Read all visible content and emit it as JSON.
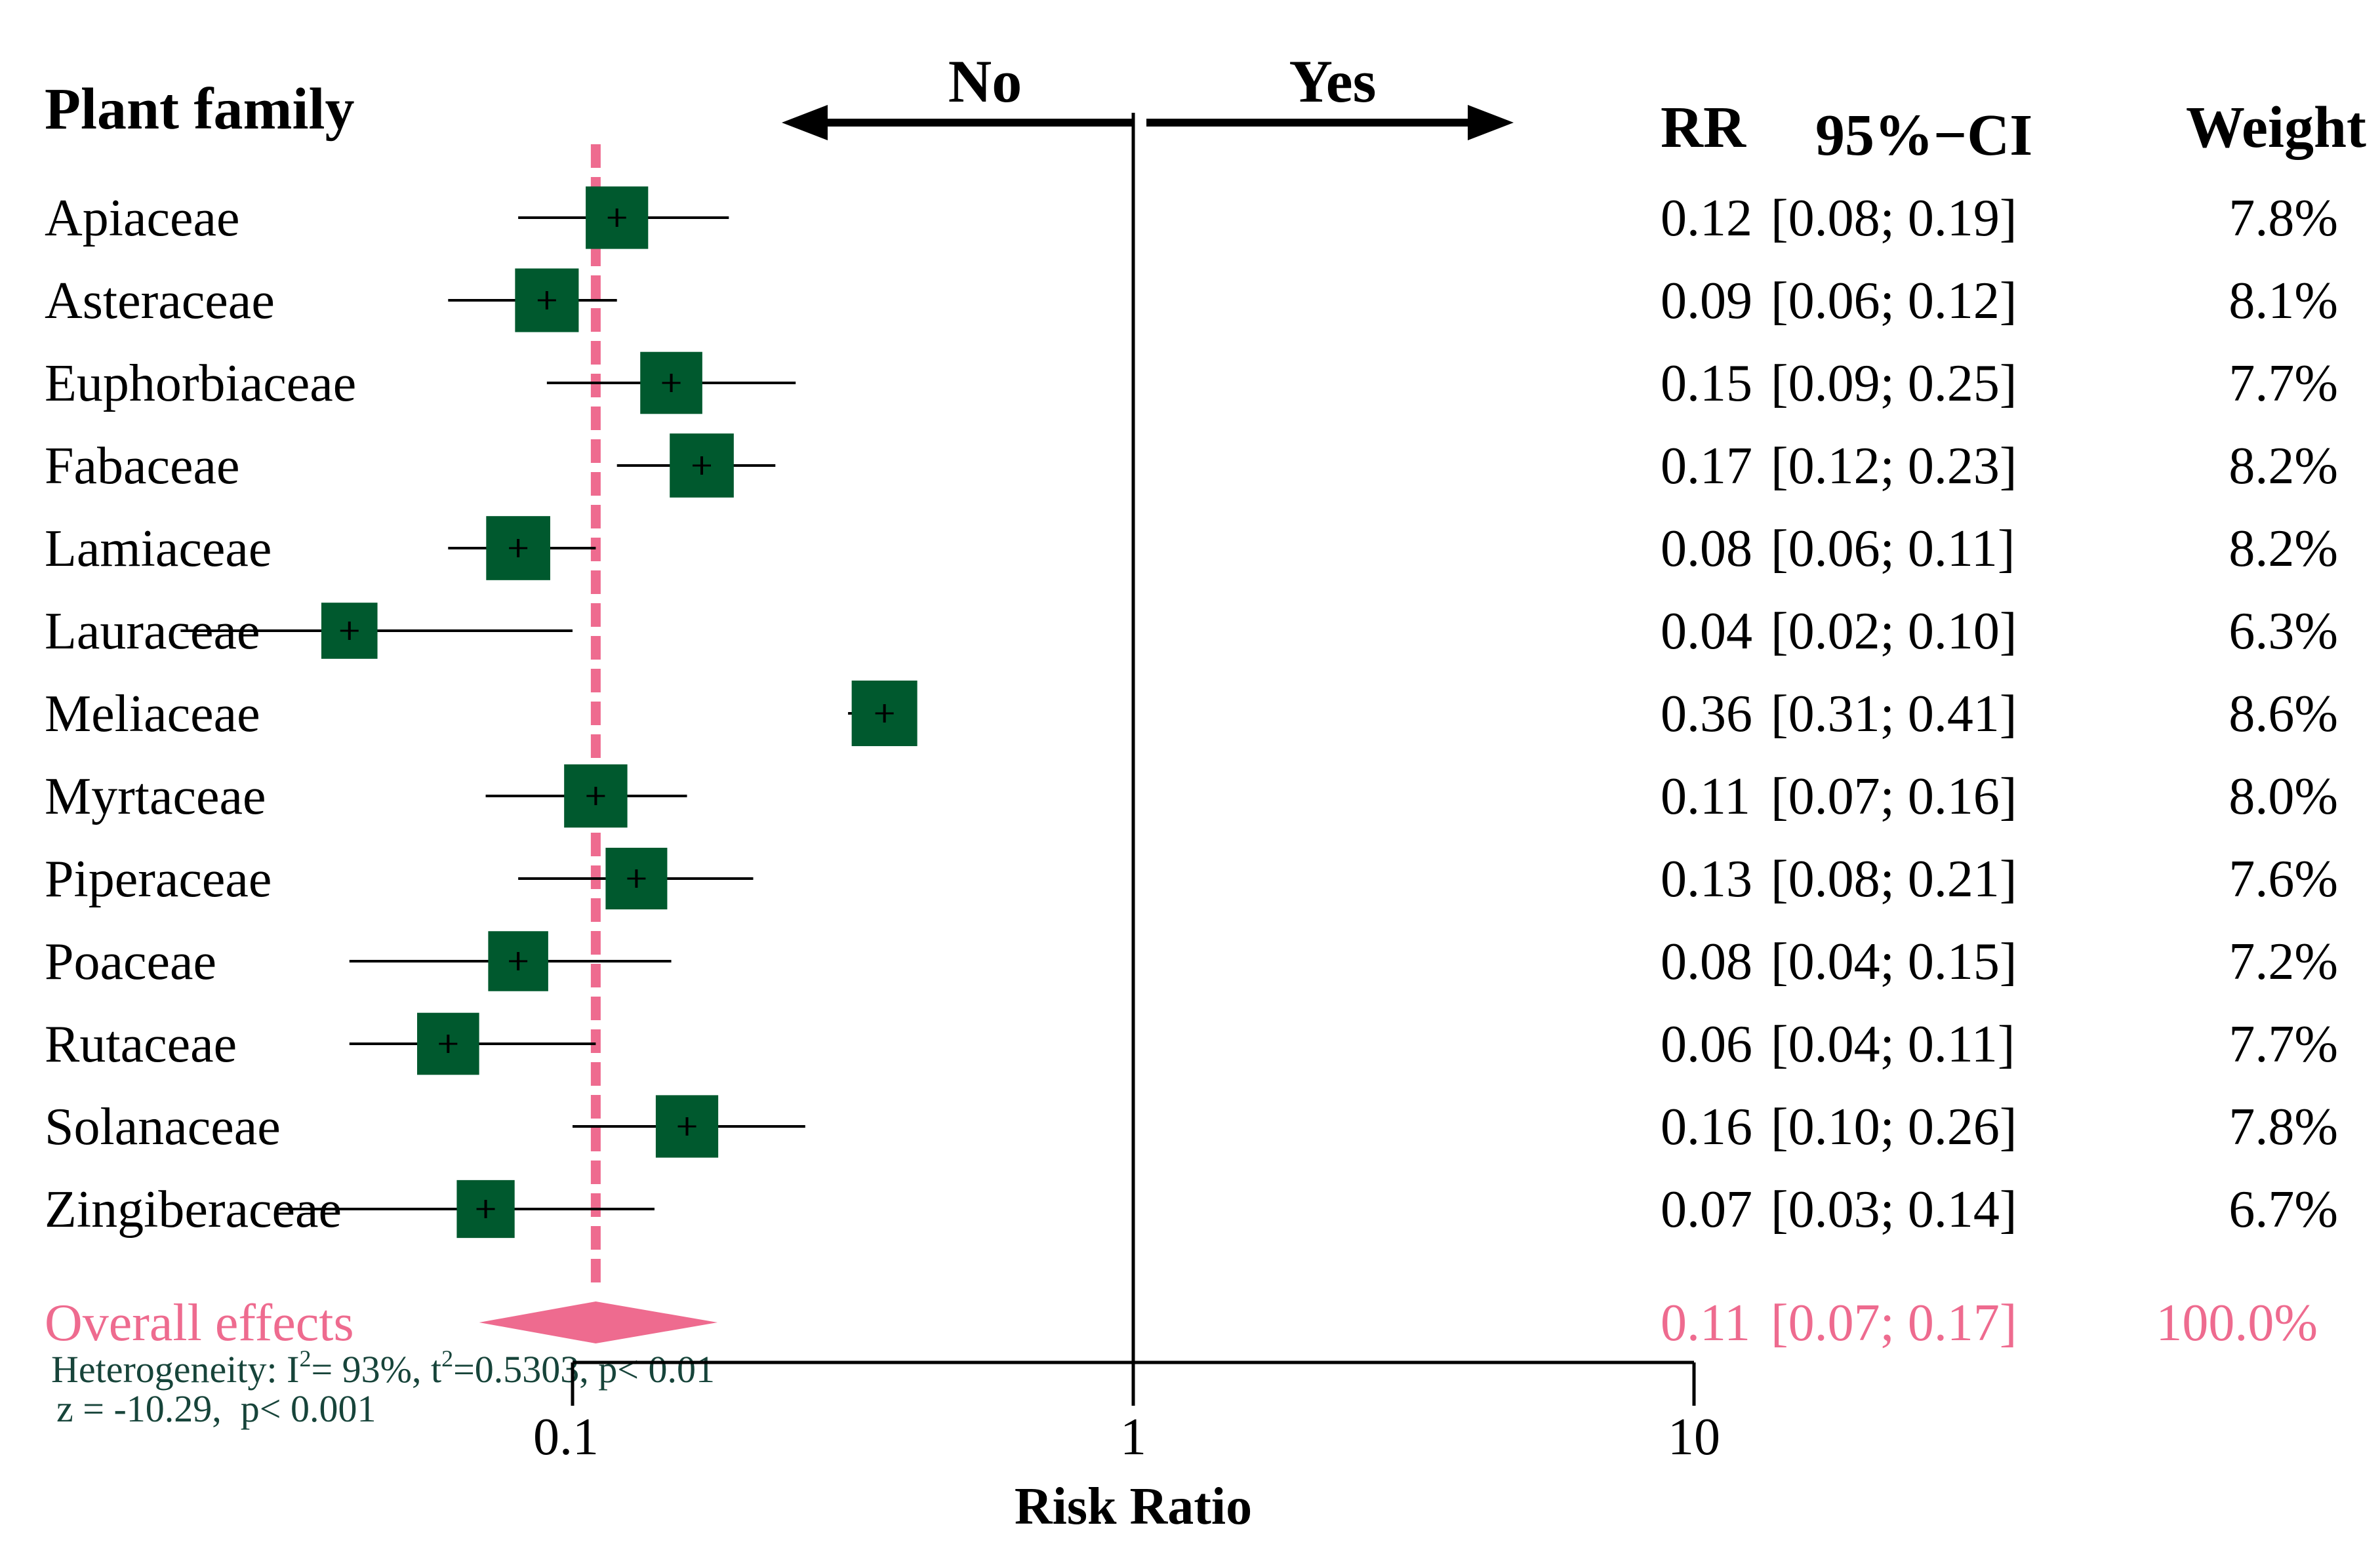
{
  "colors": {
    "box": "#00592e",
    "overall": "#ee6b8f",
    "ink": "#000000",
    "footnote": "#17443a"
  },
  "chart_data": {
    "type": "forest",
    "scale": "log10",
    "xlabel": "Risk Ratio",
    "xlim": [
      0.1,
      10
    ],
    "ticks": [
      {
        "value": 0.1,
        "label": "0.1"
      },
      {
        "value": 1,
        "label": "1"
      },
      {
        "value": 10,
        "label": "10"
      }
    ],
    "reference_line": 1,
    "direction_labels": {
      "left": "No",
      "right": "Yes"
    },
    "headers": {
      "study": "Plant family",
      "rr": "RR",
      "ci": "95%−CI",
      "weight": "Weight"
    },
    "studies": [
      {
        "name": "Apiaceae",
        "rr": 0.12,
        "lower": 0.08,
        "upper": 0.19,
        "weight": 7.8,
        "rr_text": "0.12",
        "ci_text": "[0.08; 0.19]",
        "weight_text": "7.8%"
      },
      {
        "name": "Asteraceae",
        "rr": 0.09,
        "lower": 0.06,
        "upper": 0.12,
        "weight": 8.1,
        "rr_text": "0.09",
        "ci_text": "[0.06; 0.12]",
        "weight_text": "8.1%"
      },
      {
        "name": "Euphorbiaceae",
        "rr": 0.15,
        "lower": 0.09,
        "upper": 0.25,
        "weight": 7.7,
        "rr_text": "0.15",
        "ci_text": "[0.09; 0.25]",
        "weight_text": "7.7%"
      },
      {
        "name": "Fabaceae",
        "rr": 0.17,
        "lower": 0.12,
        "upper": 0.23,
        "weight": 8.2,
        "rr_text": "0.17",
        "ci_text": "[0.12; 0.23]",
        "weight_text": "8.2%"
      },
      {
        "name": "Lamiaceae",
        "rr": 0.08,
        "lower": 0.06,
        "upper": 0.11,
        "weight": 8.2,
        "rr_text": "0.08",
        "ci_text": "[0.06; 0.11]",
        "weight_text": "8.2%"
      },
      {
        "name": "Lauraceae",
        "rr": 0.04,
        "lower": 0.02,
        "upper": 0.1,
        "weight": 6.3,
        "rr_text": "0.04",
        "ci_text": "[0.02; 0.10]",
        "weight_text": "6.3%"
      },
      {
        "name": "Meliaceae",
        "rr": 0.36,
        "lower": 0.31,
        "upper": 0.41,
        "weight": 8.6,
        "rr_text": "0.36",
        "ci_text": "[0.31; 0.41]",
        "weight_text": "8.6%"
      },
      {
        "name": "Myrtaceae",
        "rr": 0.11,
        "lower": 0.07,
        "upper": 0.16,
        "weight": 8.0,
        "rr_text": "0.11",
        "ci_text": "[0.07; 0.16]",
        "weight_text": "8.0%"
      },
      {
        "name": "Piperaceae",
        "rr": 0.13,
        "lower": 0.08,
        "upper": 0.21,
        "weight": 7.6,
        "rr_text": "0.13",
        "ci_text": "[0.08; 0.21]",
        "weight_text": "7.6%"
      },
      {
        "name": "Poaceae",
        "rr": 0.08,
        "lower": 0.04,
        "upper": 0.15,
        "weight": 7.2,
        "rr_text": "0.08",
        "ci_text": "[0.04; 0.15]",
        "weight_text": "7.2%"
      },
      {
        "name": "Rutaceae",
        "rr": 0.06,
        "lower": 0.04,
        "upper": 0.11,
        "weight": 7.7,
        "rr_text": "0.06",
        "ci_text": "[0.04; 0.11]",
        "weight_text": "7.7%"
      },
      {
        "name": "Solanaceae",
        "rr": 0.16,
        "lower": 0.1,
        "upper": 0.26,
        "weight": 7.8,
        "rr_text": "0.16",
        "ci_text": "[0.10; 0.26]",
        "weight_text": "7.8%"
      },
      {
        "name": "Zingiberaceae",
        "rr": 0.07,
        "lower": 0.03,
        "upper": 0.14,
        "weight": 6.7,
        "rr_text": "0.07",
        "ci_text": "[0.03; 0.14]",
        "weight_text": "6.7%"
      }
    ],
    "overall": {
      "name": "Overall effects",
      "rr": 0.11,
      "lower": 0.07,
      "upper": 0.17,
      "weight": 100.0,
      "rr_text": "0.11",
      "ci_text": "[0.07; 0.17]",
      "weight_text": "100.0%"
    },
    "heterogeneity": {
      "prefix": "Heterogeneity: I",
      "i2_exp": "2",
      "i2_value": "= 93%, t",
      "t2_exp": "2",
      "t2_rest": "=0.5303, p< 0.01",
      "z_test": "z = -10.29,  p< 0.001"
    }
  }
}
